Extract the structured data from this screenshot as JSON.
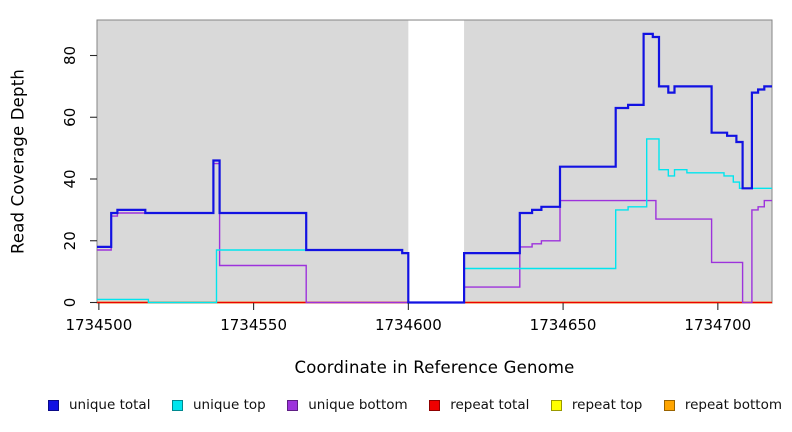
{
  "figure": {
    "background": "#FFFFFF"
  },
  "chart_data": {
    "type": "line",
    "subtype": "step",
    "title": "",
    "xlabel": "Coordinate in Reference Genome",
    "ylabel": "Read Coverage Depth",
    "x_ticks": [
      1734500,
      1734550,
      1734600,
      1734650,
      1734700
    ],
    "y_ticks": [
      0,
      20,
      40,
      60,
      80
    ],
    "x_range": [
      1734499.4,
      1734717.5
    ],
    "y_range": [
      0,
      91.5
    ],
    "grid": "off",
    "panel_background": "#D9D9D9",
    "panel_border": "#858585",
    "tick_color": "#2A2A2A",
    "coverage_gap": {
      "x0": 1734600,
      "x1": 1734618
    },
    "legend_position": "bottom",
    "series": [
      {
        "name": "unique total",
        "color": "#1212E2",
        "line_width": 2.2,
        "segments": [
          {
            "x_end": 1734717.5,
            "points": [
              [
                1734499.4,
                18
              ],
              [
                1734504,
                29
              ],
              [
                1734506,
                30
              ],
              [
                1734515,
                29
              ],
              [
                1734537,
                46
              ],
              [
                1734539,
                29
              ],
              [
                1734567,
                17
              ],
              [
                1734598,
                16
              ],
              [
                1734600,
                0
              ],
              [
                1734618,
                16
              ],
              [
                1734636,
                29
              ],
              [
                1734640,
                30
              ],
              [
                1734643,
                31
              ],
              [
                1734649,
                44
              ],
              [
                1734667,
                63
              ],
              [
                1734671,
                64
              ],
              [
                1734676,
                87
              ],
              [
                1734679,
                86
              ],
              [
                1734681,
                70
              ],
              [
                1734684,
                68
              ],
              [
                1734686,
                70
              ],
              [
                1734698,
                55
              ],
              [
                1734703,
                54
              ],
              [
                1734706,
                52
              ],
              [
                1734708,
                37
              ],
              [
                1734711,
                68
              ],
              [
                1734713,
                69
              ],
              [
                1734715,
                70
              ]
            ]
          }
        ]
      },
      {
        "name": "unique top",
        "color": "#00E5EE",
        "line_width": 1.4,
        "segments": [
          {
            "x_end": 1734600,
            "points": [
              [
                1734499.4,
                1
              ],
              [
                1734516,
                0
              ],
              [
                1734538,
                17
              ],
              [
                1734598,
                16
              ]
            ]
          },
          {
            "x_end": 1734717.5,
            "points": [
              [
                1734618,
                11
              ],
              [
                1734667,
                30
              ],
              [
                1734671,
                31
              ],
              [
                1734677,
                53
              ],
              [
                1734681,
                43
              ],
              [
                1734684,
                41
              ],
              [
                1734686,
                43
              ],
              [
                1734690,
                42
              ],
              [
                1734702,
                41
              ],
              [
                1734705,
                39
              ],
              [
                1734707,
                37
              ]
            ]
          }
        ]
      },
      {
        "name": "unique bottom",
        "color": "#9D32DC",
        "line_width": 1.4,
        "segments": [
          {
            "x_end": 1734600,
            "points": [
              [
                1734499.4,
                17
              ],
              [
                1734504,
                28
              ],
              [
                1734506,
                29
              ],
              [
                1734537,
                45
              ],
              [
                1734539,
                12
              ],
              [
                1734567,
                0
              ]
            ]
          },
          {
            "x_end": 1734717.5,
            "points": [
              [
                1734618,
                5
              ],
              [
                1734636,
                18
              ],
              [
                1734640,
                19
              ],
              [
                1734643,
                20
              ],
              [
                1734649,
                33
              ],
              [
                1734680,
                27
              ],
              [
                1734698,
                13
              ],
              [
                1734708,
                0
              ],
              [
                1734711,
                30
              ],
              [
                1734713,
                31
              ],
              [
                1734715,
                33
              ]
            ]
          }
        ]
      },
      {
        "name": "repeat total",
        "color": "#EE0000",
        "line_width": 1.4,
        "segments": [
          {
            "x_end": 1734600,
            "points": [
              [
                1734499.4,
                0
              ]
            ]
          },
          {
            "x_end": 1734717.5,
            "points": [
              [
                1734618,
                0
              ]
            ]
          }
        ]
      },
      {
        "name": "repeat top",
        "color": "#FFFF00",
        "line_width": 1.4,
        "segments": [
          {
            "x_end": 1734600,
            "points": [
              [
                1734499.4,
                0
              ]
            ]
          },
          {
            "x_end": 1734717.5,
            "points": [
              [
                1734618,
                0
              ]
            ]
          }
        ]
      },
      {
        "name": "repeat bottom",
        "color": "#FFA500",
        "line_width": 1.4,
        "segments": [
          {
            "x_end": 1734717.5,
            "points": [
              [
                1734499.4,
                0
              ]
            ]
          }
        ]
      }
    ]
  }
}
